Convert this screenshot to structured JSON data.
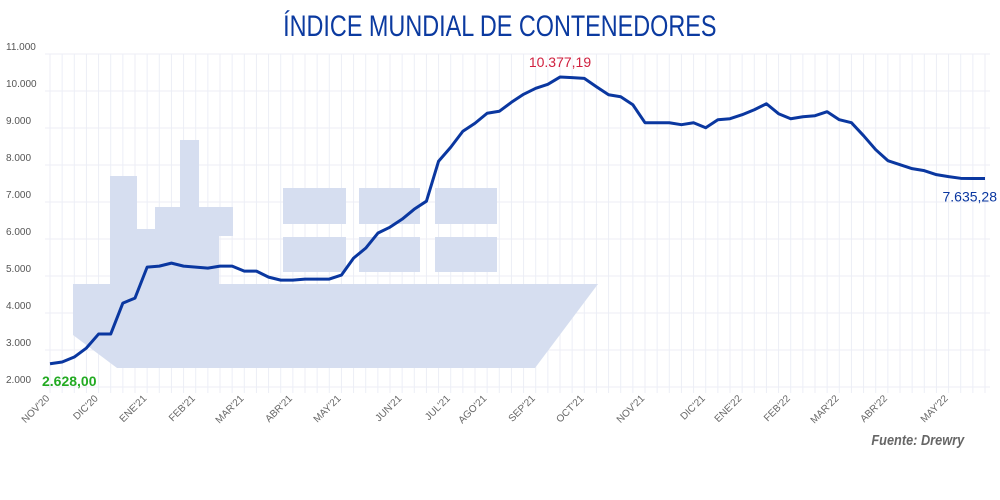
{
  "chart_data": {
    "type": "line",
    "title": "ÍNDICE MUNDIAL DE CONTENEDORES",
    "xlabel": "",
    "ylabel": "",
    "ylim": [
      2000,
      11000
    ],
    "yticks": [
      2000,
      3000,
      4000,
      5000,
      6000,
      7000,
      8000,
      9000,
      10000,
      11000
    ],
    "ytick_labels": [
      "2.000",
      "3.000",
      "4.000",
      "5.000",
      "6.000",
      "7.000",
      "8.000",
      "9.000",
      "10.000",
      "11.000"
    ],
    "grid": true,
    "xtick_labels": [
      {
        "label": "NOV'20",
        "index": 0
      },
      {
        "label": "DIC'20",
        "index": 4
      },
      {
        "label": "ENE'21",
        "index": 8
      },
      {
        "label": "FEB'21",
        "index": 12
      },
      {
        "label": "MAR'21",
        "index": 16
      },
      {
        "label": "ABR'21",
        "index": 20
      },
      {
        "label": "MAY'21",
        "index": 24
      },
      {
        "label": "JUN'21",
        "index": 29
      },
      {
        "label": "JUL'21",
        "index": 33
      },
      {
        "label": "AGO'21",
        "index": 36
      },
      {
        "label": "SEP'21",
        "index": 40
      },
      {
        "label": "OCT'21",
        "index": 44
      },
      {
        "label": "NOV'21",
        "index": 49
      },
      {
        "label": "DIC'21",
        "index": 54
      },
      {
        "label": "ENE'22",
        "index": 57
      },
      {
        "label": "FEB'22",
        "index": 61
      },
      {
        "label": "MAR'22",
        "index": 65
      },
      {
        "label": "ABR'22",
        "index": 69
      },
      {
        "label": "MAY'22",
        "index": 74
      }
    ],
    "series": [
      {
        "name": "Índice mundial de contenedores",
        "color": "#0a37a0",
        "values": [
          2628,
          2675,
          2810,
          3053,
          3431,
          3431,
          4268,
          4403,
          5240,
          5267,
          5348,
          5267,
          5240,
          5213,
          5267,
          5267,
          5132,
          5132,
          4970,
          4889,
          4889,
          4916,
          4916,
          4916,
          5024,
          5483,
          5753,
          6158,
          6320,
          6536,
          6806,
          7022,
          8102,
          8480,
          8912,
          9128,
          9398,
          9452,
          9695,
          9911,
          10073,
          10181,
          10377.19,
          10360,
          10340,
          10115,
          9899,
          9845,
          9629,
          9143,
          9143,
          9143,
          9089,
          9143,
          9008,
          9224,
          9251,
          9359,
          9494,
          9656,
          9386,
          9251,
          9305,
          9332,
          9440,
          9224,
          9143,
          8792,
          8414,
          8117,
          8009,
          7901,
          7847,
          7739,
          7685,
          7640,
          7635.28,
          7635.28
        ]
      }
    ],
    "annotations": [
      {
        "text": "2.628,00",
        "index": 0,
        "color": "#22aa22"
      },
      {
        "text": "10.377,19",
        "index": 42,
        "color": "#d0203f"
      },
      {
        "text": "7.635,28",
        "index": 77,
        "color": "#0a37a0"
      }
    ],
    "source": "Fuente: Drewry"
  }
}
